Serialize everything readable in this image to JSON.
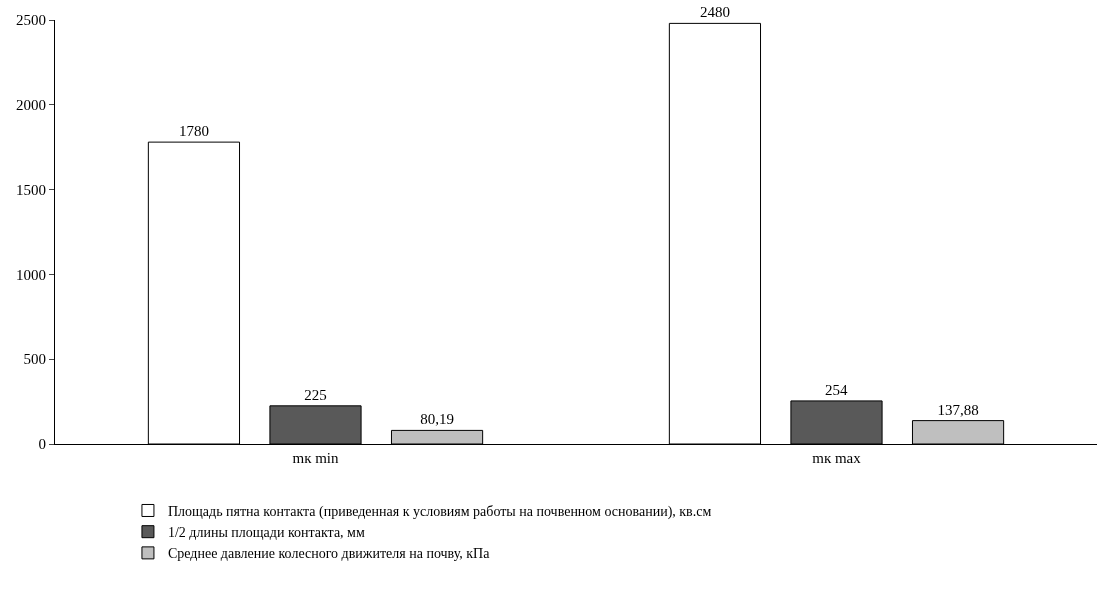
{
  "chart_data": {
    "type": "bar",
    "categories": [
      "mк min",
      "mк max"
    ],
    "series": [
      {
        "name": "Площадь пятна контакта (приведенная к условиям работы на почвенном основании), кв.см",
        "color": "#ffffff",
        "values": [
          1780,
          2480
        ],
        "value_labels": [
          "1780",
          "2480"
        ]
      },
      {
        "name": "1/2 длины площади контакта, мм",
        "color": "#595959",
        "values": [
          225,
          254
        ],
        "value_labels": [
          "225",
          "254"
        ]
      },
      {
        "name": "Среднее давление колесного движителя на почву, кПа",
        "color": "#bfbfbf",
        "values": [
          80.19,
          137.88
        ],
        "value_labels": [
          "80,19",
          "137,88"
        ]
      }
    ],
    "ylim": [
      0,
      2500
    ],
    "yticks": [
      0,
      500,
      1000,
      1500,
      2000,
      2500
    ],
    "grid": false,
    "legend": "bottom"
  }
}
